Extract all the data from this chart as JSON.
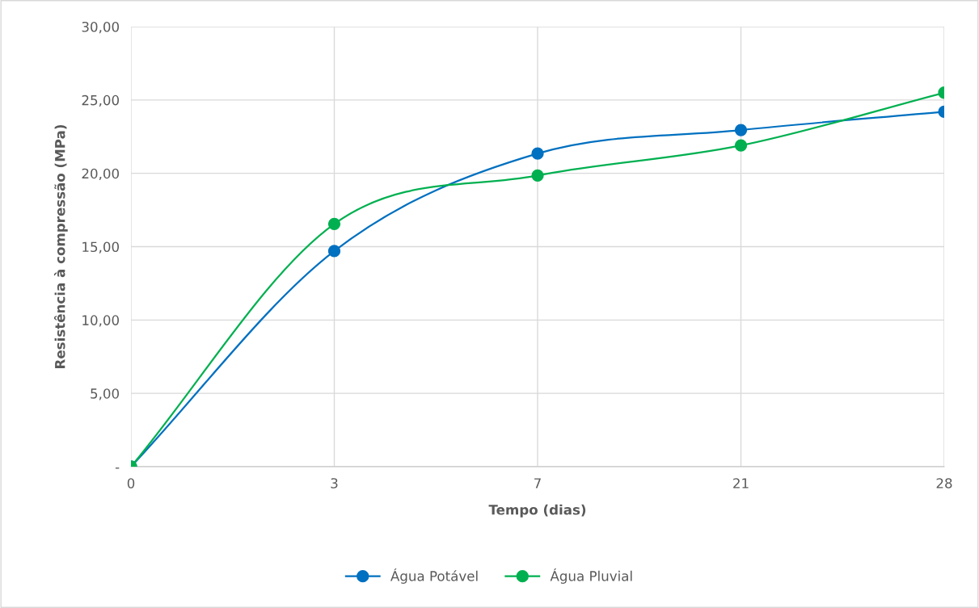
{
  "chart_data": {
    "type": "line",
    "xlabel": "Tempo (dias)",
    "ylabel": "Resistência à compressão (MPa)",
    "categories": [
      "0",
      "3",
      "7",
      "21",
      "28"
    ],
    "series": [
      {
        "name": "Água Potável",
        "color": "#0070c0",
        "values": [
          0,
          14.7,
          21.35,
          22.95,
          24.2
        ]
      },
      {
        "name": "Água Pluvial",
        "color": "#00b050",
        "values": [
          0,
          16.55,
          19.85,
          21.9,
          25.5
        ]
      }
    ],
    "ylim": [
      0,
      30
    ],
    "yticks": [
      {
        "value": 0,
        "label": "-"
      },
      {
        "value": 5,
        "label": "5,00"
      },
      {
        "value": 10,
        "label": "10,00"
      },
      {
        "value": 15,
        "label": "15,00"
      },
      {
        "value": 20,
        "label": "20,00"
      },
      {
        "value": 25,
        "label": "25,00"
      },
      {
        "value": 30,
        "label": "30,00"
      }
    ],
    "grid": true,
    "legend": "bottom",
    "marker": "circle",
    "line_style": "solid"
  }
}
